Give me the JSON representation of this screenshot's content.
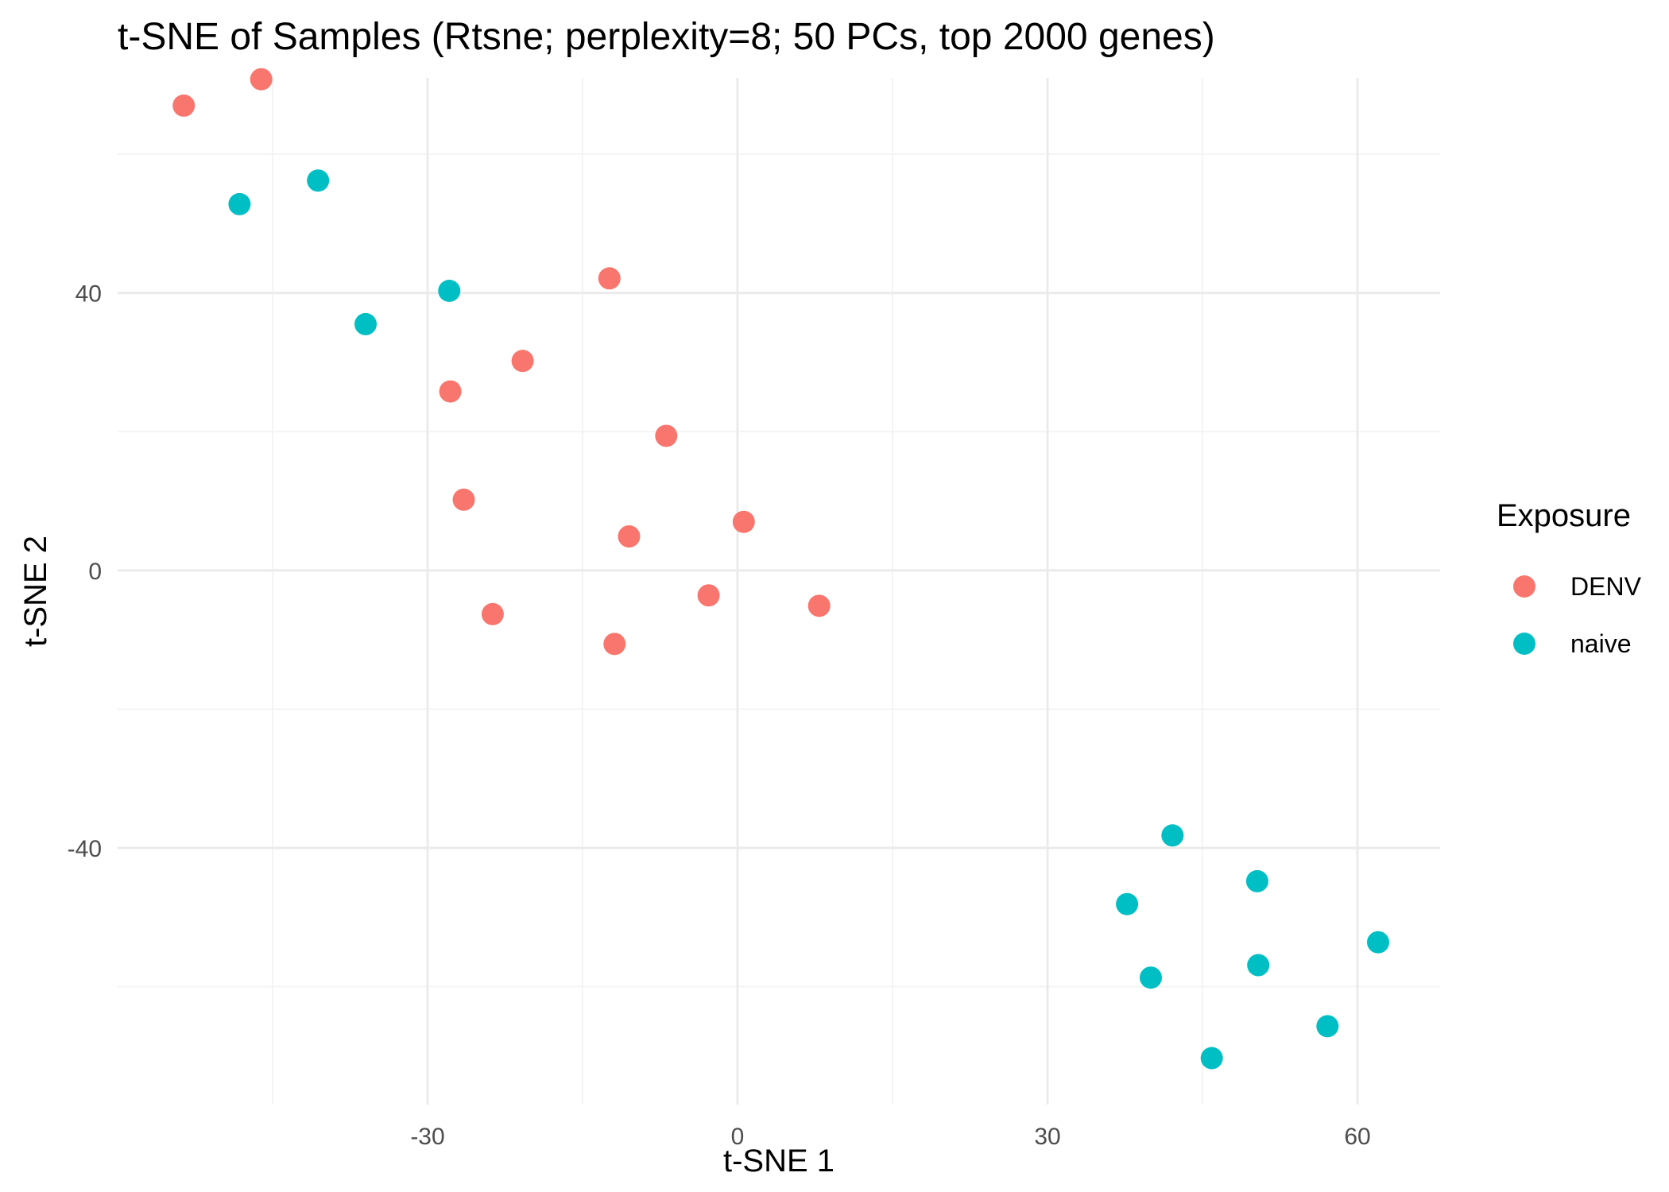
{
  "chart_data": {
    "type": "scatter",
    "title": "t-SNE of Samples (Rtsne; perplexity=8; 50 PCs, top 2000 genes)",
    "xlabel": "t-SNE 1",
    "ylabel": "t-SNE 2",
    "xlim": [
      -60,
      68
    ],
    "ylim": [
      -77,
      71
    ],
    "xticks": [
      -30,
      0,
      30,
      60
    ],
    "xtick_labels": [
      "-30",
      "0",
      "30",
      "60"
    ],
    "yticks": [
      40,
      0,
      -40
    ],
    "ytick_labels": [
      "40",
      "0",
      "-40"
    ],
    "x_minor": [
      -45,
      -15,
      15,
      45
    ],
    "y_minor": [
      60,
      20,
      -20,
      -60
    ],
    "grid": true,
    "legend": {
      "title": "Exposure",
      "position": "right"
    },
    "series": [
      {
        "name": "DENV",
        "color": "#F8766D",
        "points": [
          {
            "x": -53.6,
            "y": 67.0
          },
          {
            "x": -46.1,
            "y": 70.8
          },
          {
            "x": -12.4,
            "y": 42.1
          },
          {
            "x": -20.8,
            "y": 30.2
          },
          {
            "x": -27.8,
            "y": 25.8
          },
          {
            "x": -6.9,
            "y": 19.4
          },
          {
            "x": -26.5,
            "y": 10.2
          },
          {
            "x": -10.5,
            "y": 4.9
          },
          {
            "x": 0.6,
            "y": 7.0
          },
          {
            "x": -2.8,
            "y": -3.6
          },
          {
            "x": 7.9,
            "y": -5.1
          },
          {
            "x": -23.7,
            "y": -6.3
          },
          {
            "x": -11.9,
            "y": -10.6
          }
        ]
      },
      {
        "name": "naive",
        "color": "#00BFC4",
        "points": [
          {
            "x": -48.2,
            "y": 52.8
          },
          {
            "x": -40.6,
            "y": 56.2
          },
          {
            "x": -27.9,
            "y": 40.3
          },
          {
            "x": -36.0,
            "y": 35.5
          },
          {
            "x": 42.1,
            "y": -38.2
          },
          {
            "x": 50.3,
            "y": -44.8
          },
          {
            "x": 37.7,
            "y": -48.1
          },
          {
            "x": 62.0,
            "y": -53.6
          },
          {
            "x": 50.4,
            "y": -56.9
          },
          {
            "x": 40.0,
            "y": -58.7
          },
          {
            "x": 57.1,
            "y": -65.7
          },
          {
            "x": 45.9,
            "y": -70.3
          }
        ]
      }
    ]
  }
}
